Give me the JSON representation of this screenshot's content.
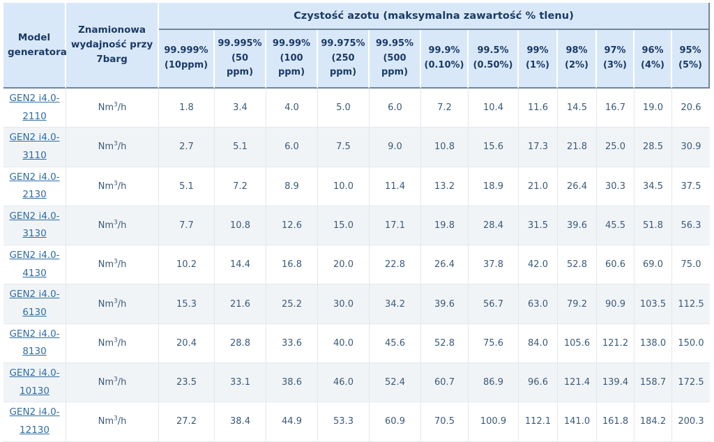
{
  "colors": {
    "header_bg": "#d9e8f8",
    "header_text": "#1a3a67",
    "strong_border": "#71849a",
    "grid_line": "#e4e7eb",
    "row_alt_bg": "#f1f4f7",
    "value_text": "#3a5a7a",
    "link_color": "#2d6ca5",
    "page_bg": "#ffffff"
  },
  "table": {
    "group_header": "Czystość azotu (maksymalna zawartość % tlenu)",
    "model_header": "Model generatora",
    "capacity_header": "Znamionowa wydajność przy 7barg",
    "purity_columns": [
      "99.999% (10ppm)",
      "99.995% (50 ppm)",
      "99.99% (100 ppm)",
      "99.975% (250 ppm)",
      "99.95% (500 ppm)",
      "99.9% (0.10%)",
      "99.5% (0.50%)",
      "99% (1%)",
      "98% (2%)",
      "97% (3%)",
      "96% (4%)",
      "95% (5%)"
    ],
    "unit": {
      "prefix": "Nm",
      "sup": "3",
      "suffix": "/h"
    },
    "rows": [
      {
        "model": "GEN2 i4.0-2110",
        "values": [
          "1.8",
          "3.4",
          "4.0",
          "5.0",
          "6.0",
          "7.2",
          "10.4",
          "11.6",
          "14.5",
          "16.7",
          "19.0",
          "20.6"
        ]
      },
      {
        "model": "GEN2 i4.0-3110",
        "values": [
          "2.7",
          "5.1",
          "6.0",
          "7.5",
          "9.0",
          "10.8",
          "15.6",
          "17.3",
          "21.8",
          "25.0",
          "28.5",
          "30.9"
        ]
      },
      {
        "model": "GEN2 i4.0-2130",
        "values": [
          "5.1",
          "7.2",
          "8.9",
          "10.0",
          "11.4",
          "13.2",
          "18.9",
          "21.0",
          "26.4",
          "30.3",
          "34.5",
          "37.5"
        ]
      },
      {
        "model": "GEN2 i4.0-3130",
        "values": [
          "7.7",
          "10.8",
          "12.6",
          "15.0",
          "17.1",
          "19.8",
          "28.4",
          "31.5",
          "39.6",
          "45.5",
          "51.8",
          "56.3"
        ]
      },
      {
        "model": "GEN2 i4.0-4130",
        "values": [
          "10.2",
          "14.4",
          "16.8",
          "20.0",
          "22.8",
          "26.4",
          "37.8",
          "42.0",
          "52.8",
          "60.6",
          "69.0",
          "75.0"
        ]
      },
      {
        "model": "GEN2 i4.0-6130",
        "values": [
          "15.3",
          "21.6",
          "25.2",
          "30.0",
          "34.2",
          "39.6",
          "56.7",
          "63.0",
          "79.2",
          "90.9",
          "103.5",
          "112.5"
        ]
      },
      {
        "model": "GEN2 i4.0-8130",
        "values": [
          "20.4",
          "28.8",
          "33.6",
          "40.0",
          "45.6",
          "52.8",
          "75.6",
          "84.0",
          "105.6",
          "121.2",
          "138.0",
          "150.0"
        ]
      },
      {
        "model": "GEN2 i4.0-10130",
        "values": [
          "23.5",
          "33.1",
          "38.6",
          "46.0",
          "52.4",
          "60.7",
          "86.9",
          "96.6",
          "121.4",
          "139.4",
          "158.7",
          "172.5"
        ]
      },
      {
        "model": "GEN2 i4.0-12130",
        "values": [
          "27.2",
          "38.4",
          "44.9",
          "53.3",
          "60.9",
          "70.5",
          "100.9",
          "112.1",
          "141.0",
          "161.8",
          "184.2",
          "200.3"
        ]
      }
    ]
  }
}
